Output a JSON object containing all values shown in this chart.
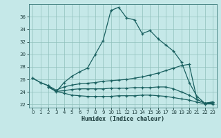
{
  "xlabel": "Humidex (Indice chaleur)",
  "bg_color": "#c5e8e8",
  "grid_color": "#90c0bc",
  "line_color": "#1a6060",
  "ylim": [
    21.5,
    38.0
  ],
  "xlim": [
    -0.5,
    23.5
  ],
  "yticks": [
    22,
    24,
    26,
    28,
    30,
    32,
    34,
    36
  ],
  "xticks": [
    0,
    1,
    2,
    3,
    4,
    5,
    6,
    7,
    8,
    9,
    10,
    11,
    12,
    13,
    14,
    15,
    16,
    17,
    18,
    19,
    20,
    21,
    22,
    23
  ],
  "line1_x": [
    0,
    1,
    2,
    3,
    4,
    5,
    6,
    7,
    8,
    9,
    10,
    11,
    12,
    13,
    14,
    15,
    16,
    17,
    18,
    19,
    20,
    21,
    22,
    23
  ],
  "line1_y": [
    26.2,
    25.5,
    25.0,
    24.0,
    25.5,
    26.5,
    27.2,
    27.8,
    30.0,
    32.2,
    37.0,
    37.5,
    35.8,
    35.5,
    33.3,
    33.8,
    32.5,
    31.5,
    30.5,
    28.8,
    25.5,
    23.3,
    22.2,
    22.4
  ],
  "line2_x": [
    0,
    1,
    2,
    3,
    4,
    5,
    6,
    7,
    8,
    9,
    10,
    11,
    12,
    13,
    14,
    15,
    16,
    17,
    18,
    19,
    20,
    21,
    22,
    23
  ],
  "line2_y": [
    26.2,
    25.5,
    25.0,
    24.3,
    24.8,
    25.1,
    25.3,
    25.4,
    25.5,
    25.7,
    25.8,
    25.9,
    26.0,
    26.2,
    26.4,
    26.7,
    27.0,
    27.4,
    27.8,
    28.2,
    28.4,
    22.8,
    22.2,
    22.4
  ],
  "line3_x": [
    2,
    3,
    4,
    5,
    6,
    7,
    8,
    9,
    10,
    11,
    12,
    13,
    14,
    15,
    16,
    17,
    18,
    19,
    20,
    21,
    22,
    23
  ],
  "line3_y": [
    24.8,
    24.1,
    24.2,
    24.4,
    24.5,
    24.5,
    24.5,
    24.5,
    24.6,
    24.6,
    24.6,
    24.7,
    24.7,
    24.7,
    24.8,
    24.8,
    24.5,
    24.0,
    23.5,
    22.8,
    22.2,
    22.2
  ],
  "line4_x": [
    2,
    3,
    4,
    5,
    6,
    7,
    8,
    9,
    10,
    11,
    12,
    13,
    14,
    15,
    16,
    17,
    18,
    19,
    20,
    21,
    22,
    23
  ],
  "line4_y": [
    24.8,
    24.1,
    23.8,
    23.5,
    23.4,
    23.3,
    23.3,
    23.3,
    23.3,
    23.4,
    23.4,
    23.4,
    23.5,
    23.5,
    23.4,
    23.3,
    23.1,
    22.9,
    22.7,
    22.4,
    22.1,
    22.1
  ]
}
